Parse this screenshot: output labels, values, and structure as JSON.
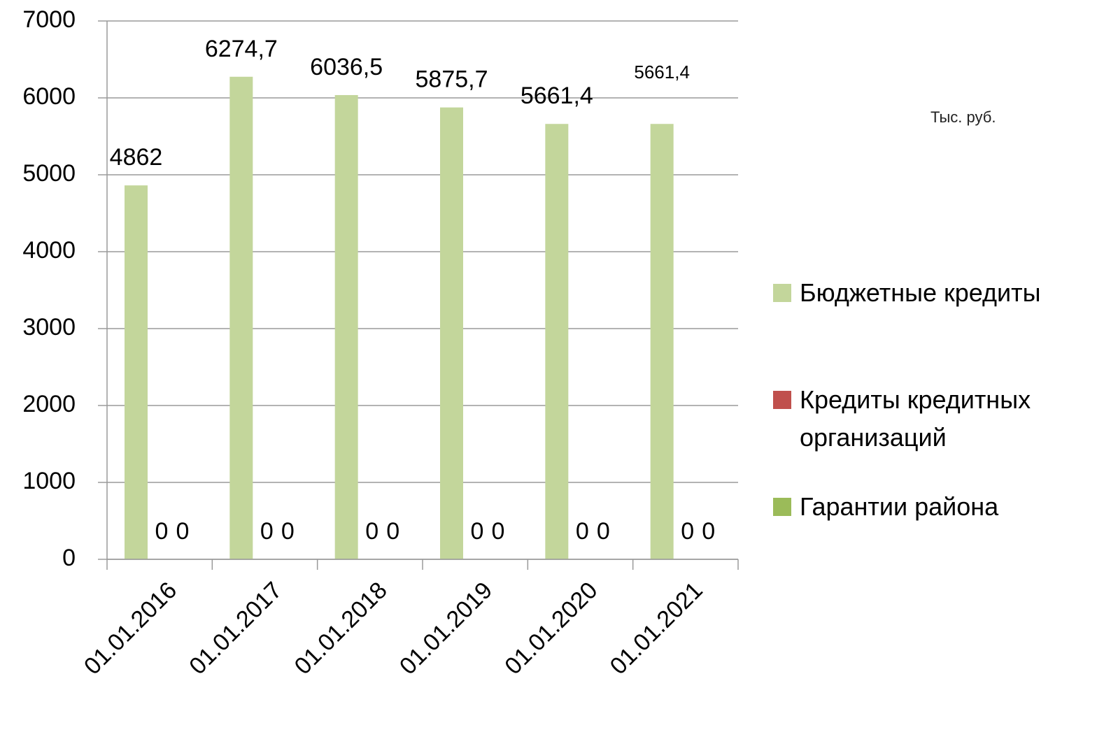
{
  "chart_data": {
    "type": "bar",
    "unit_label": "Тыс. руб.",
    "categories": [
      "01.01.2016",
      "01.01.2017",
      "01.01.2018",
      "01.01.2019",
      "01.01.2020",
      "01.01.2021"
    ],
    "series": [
      {
        "name": "Бюджетные кредиты",
        "color": "#c3d69b",
        "values": [
          4862,
          6274.7,
          6036.5,
          5875.7,
          5661.4,
          5661.4
        ],
        "value_labels": [
          "4862",
          "6274,7",
          "6036,5",
          "5875,7",
          "5661,4",
          "5661,4"
        ]
      },
      {
        "name": "Кредиты кредитных организаций",
        "color": "#c0504d",
        "values": [
          0,
          0,
          0,
          0,
          0,
          0
        ]
      },
      {
        "name": "Гарантии района",
        "color": "#9bbb59",
        "values": [
          0,
          0,
          0,
          0,
          0,
          0
        ]
      }
    ],
    "ylim": [
      0,
      7000
    ],
    "yticks": [
      0,
      1000,
      2000,
      3000,
      4000,
      5000,
      6000,
      7000
    ],
    "grid": true,
    "legend": "right"
  }
}
